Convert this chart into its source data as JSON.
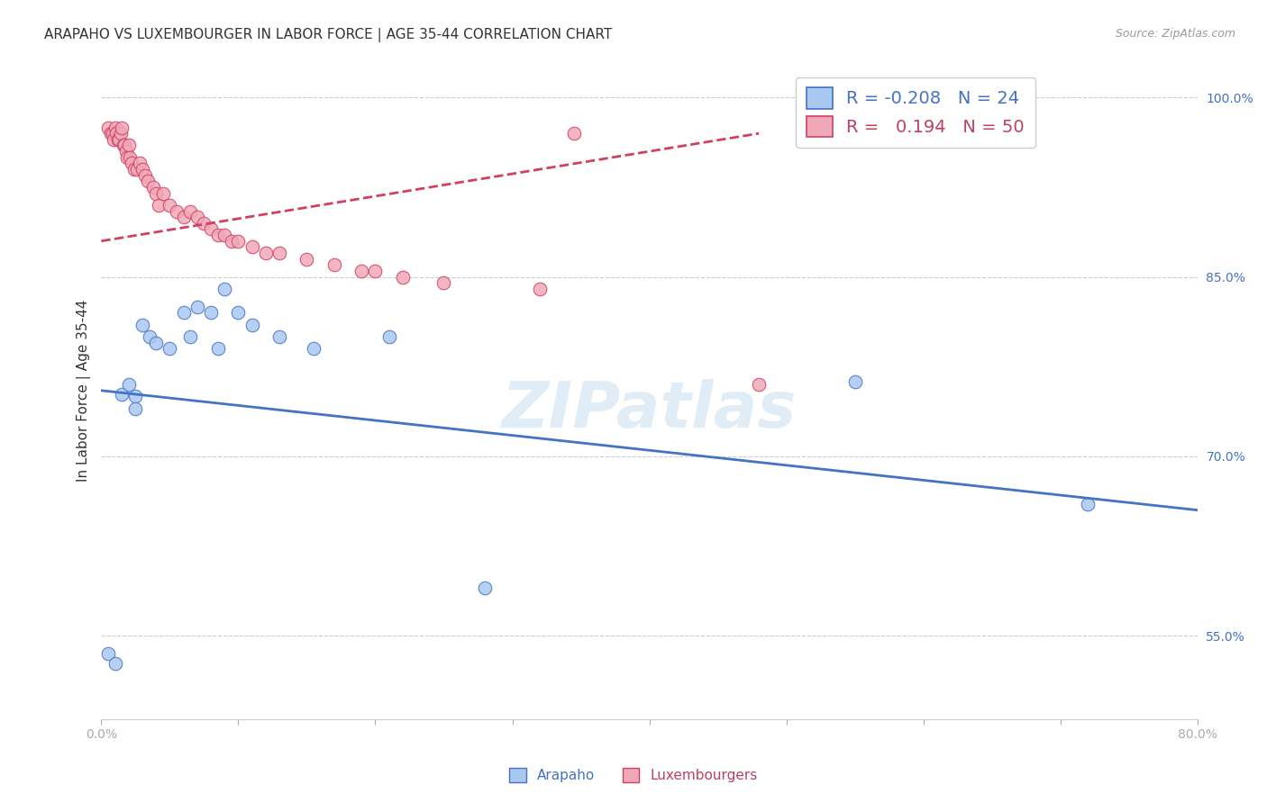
{
  "title": "ARAPAHO VS LUXEMBOURGER IN LABOR FORCE | AGE 35-44 CORRELATION CHART",
  "source": "Source: ZipAtlas.com",
  "ylabel": "In Labor Force | Age 35-44",
  "xlim": [
    0.0,
    0.8
  ],
  "ylim": [
    0.48,
    1.03
  ],
  "xticks": [
    0.0,
    0.1,
    0.2,
    0.3,
    0.4,
    0.5,
    0.6,
    0.7,
    0.8
  ],
  "xtick_labels": [
    "0.0%",
    "",
    "",
    "",
    "",
    "",
    "",
    "",
    "80.0%"
  ],
  "yticks": [
    0.55,
    0.7,
    0.85,
    1.0
  ],
  "ytick_labels": [
    "55.0%",
    "70.0%",
    "85.0%",
    "100.0%"
  ],
  "arapaho_R": "-0.208",
  "arapaho_N": "24",
  "luxembourger_R": "0.194",
  "luxembourger_N": "50",
  "arapaho_color": "#a8c8f0",
  "luxembourger_color": "#f0a8b8",
  "arapaho_line_color": "#4472c4",
  "luxembourger_line_color": "#d04060",
  "watermark": "ZIPatlas",
  "arapaho_x": [
    0.005,
    0.01,
    0.015,
    0.02,
    0.025,
    0.025,
    0.03,
    0.035,
    0.04,
    0.05,
    0.06,
    0.065,
    0.07,
    0.08,
    0.085,
    0.09,
    0.1,
    0.11,
    0.13,
    0.155,
    0.21,
    0.28,
    0.55,
    0.72
  ],
  "arapaho_y": [
    0.535,
    0.527,
    0.752,
    0.76,
    0.75,
    0.74,
    0.81,
    0.8,
    0.795,
    0.79,
    0.82,
    0.8,
    0.825,
    0.82,
    0.79,
    0.84,
    0.82,
    0.81,
    0.8,
    0.79,
    0.8,
    0.59,
    0.762,
    0.66
  ],
  "luxembourger_x": [
    0.005,
    0.007,
    0.008,
    0.009,
    0.01,
    0.011,
    0.012,
    0.013,
    0.014,
    0.015,
    0.016,
    0.017,
    0.018,
    0.019,
    0.02,
    0.021,
    0.022,
    0.024,
    0.026,
    0.028,
    0.03,
    0.032,
    0.034,
    0.038,
    0.04,
    0.042,
    0.045,
    0.05,
    0.055,
    0.06,
    0.065,
    0.07,
    0.075,
    0.08,
    0.085,
    0.09,
    0.095,
    0.1,
    0.11,
    0.12,
    0.13,
    0.15,
    0.17,
    0.19,
    0.2,
    0.22,
    0.25,
    0.32,
    0.345,
    0.48
  ],
  "luxembourger_y": [
    0.975,
    0.97,
    0.97,
    0.965,
    0.975,
    0.97,
    0.965,
    0.965,
    0.97,
    0.975,
    0.96,
    0.96,
    0.955,
    0.95,
    0.96,
    0.95,
    0.945,
    0.94,
    0.94,
    0.945,
    0.94,
    0.935,
    0.93,
    0.925,
    0.92,
    0.91,
    0.92,
    0.91,
    0.905,
    0.9,
    0.905,
    0.9,
    0.895,
    0.89,
    0.885,
    0.885,
    0.88,
    0.88,
    0.875,
    0.87,
    0.87,
    0.865,
    0.86,
    0.855,
    0.855,
    0.85,
    0.845,
    0.84,
    0.97,
    0.76
  ],
  "arapaho_trend_x": [
    0.0,
    0.8
  ],
  "arapaho_trend_y": [
    0.755,
    0.655
  ],
  "luxembourger_trend_x": [
    0.0,
    0.48
  ],
  "luxembourger_trend_y": [
    0.88,
    0.97
  ],
  "grid_color": "#cccccc",
  "background_color": "#ffffff",
  "title_fontsize": 11,
  "axis_label_fontsize": 11,
  "tick_fontsize": 10,
  "legend_fontsize": 14
}
